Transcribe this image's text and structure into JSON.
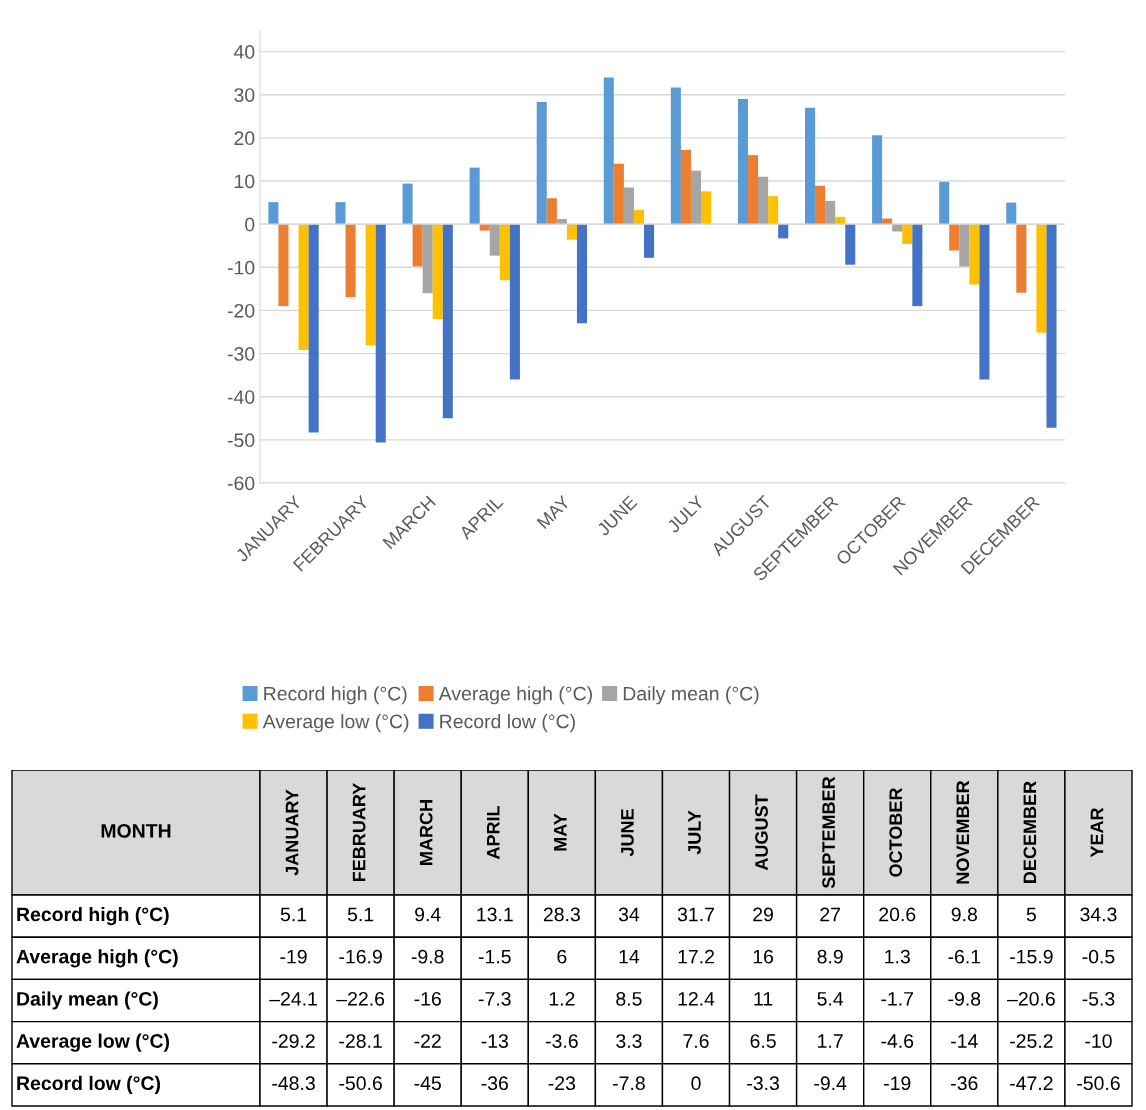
{
  "chart_data": {
    "type": "bar",
    "categories": [
      "JANUARY",
      "FEBRUARY",
      "MARCH",
      "APRIL",
      "MAY",
      "JUNE",
      "JULY",
      "AUGUST",
      "SEPTEMBER",
      "OCTOBER",
      "NOVEMBER",
      "DECEMBER"
    ],
    "series": [
      {
        "name": "Record high (°C)",
        "color": "#5b9bd5",
        "values": [
          5.1,
          5.1,
          9.4,
          13.1,
          28.3,
          34,
          31.7,
          29,
          27,
          20.6,
          9.8,
          5
        ],
        "value_labels": [
          "5.1",
          "5.1",
          "9.4",
          "13.1",
          "28.3",
          "34",
          "31.7",
          "29",
          "27",
          "20.6",
          "9.8",
          "5"
        ]
      },
      {
        "name": "Average high (°C)",
        "color": "#ed7d31",
        "values": [
          -19,
          -16.9,
          -9.8,
          -1.5,
          6,
          14,
          17.2,
          16,
          8.9,
          1.3,
          -6.1,
          -15.9
        ],
        "value_labels": [
          "-19",
          "-16.9",
          "-9.8",
          "-1.5",
          "6",
          "14",
          "17.2",
          "16",
          "8.9",
          "1.3",
          "-6.1",
          "-15.9"
        ]
      },
      {
        "name": "Daily mean (°C)",
        "color": "#a5a5a5",
        "values": [
          null,
          null,
          -16,
          -7.3,
          1.2,
          8.5,
          12.4,
          11,
          5.4,
          -1.7,
          -9.8,
          null
        ],
        "value_labels": [
          "–24.1",
          "–22.6",
          "-16",
          "-7.3",
          "1.2",
          "8.5",
          "12.4",
          "11",
          "5.4",
          "-1.7",
          "-9.8",
          "–20.6"
        ]
      },
      {
        "name": "Average low (°C)",
        "color": "#ffc000",
        "values": [
          -29.2,
          -28.1,
          -22,
          -13,
          -3.6,
          3.3,
          7.6,
          6.5,
          1.7,
          -4.6,
          -14,
          -25.2
        ],
        "value_labels": [
          "-29.2",
          "-28.1",
          "-22",
          "-13",
          "-3.6",
          "3.3",
          "7.6",
          "6.5",
          "1.7",
          "-4.6",
          "-14",
          "-25.2"
        ]
      },
      {
        "name": "Record low (°C)",
        "color": "#4472c4",
        "values": [
          -48.3,
          -50.6,
          -45,
          -36,
          -23,
          -7.8,
          0,
          -3.3,
          -9.4,
          -19,
          -36,
          -47.2
        ],
        "value_labels": [
          "-48.3",
          "-50.6",
          "-45",
          "-36",
          "-23",
          "-7.8",
          "0",
          "-3.3",
          "-9.4",
          "-19",
          "-36",
          "-47.2"
        ]
      }
    ],
    "ylim": [
      -60,
      45
    ],
    "yticks": [
      -60,
      -50,
      -40,
      -30,
      -20,
      -10,
      0,
      10,
      20,
      30,
      40
    ],
    "grid": "y",
    "legend": "bottom",
    "annotations": [
      "MONTH",
      "YEAR",
      "34.3",
      "-0.5",
      "-5.3",
      "-10",
      "-50.6"
    ]
  }
}
